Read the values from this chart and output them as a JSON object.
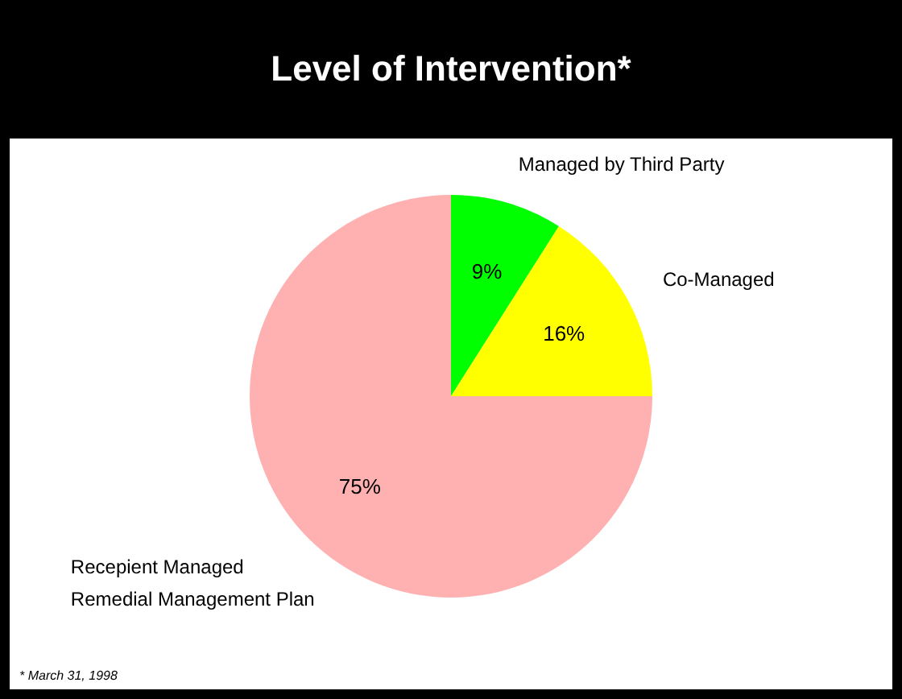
{
  "chart_data": {
    "type": "pie",
    "title": "Level of Intervention*",
    "categories": [
      "Managed by Third Party",
      "Co-Managed",
      "Recepient Managed Remedial Management Plan"
    ],
    "values": [
      9,
      16,
      75
    ],
    "value_labels": [
      "9%",
      "16%",
      "75%"
    ],
    "colors": [
      "#00ff00",
      "#ffff00",
      "#ffb0b0"
    ],
    "legend": false,
    "annotations": [
      "* March 31, 1998"
    ]
  }
}
